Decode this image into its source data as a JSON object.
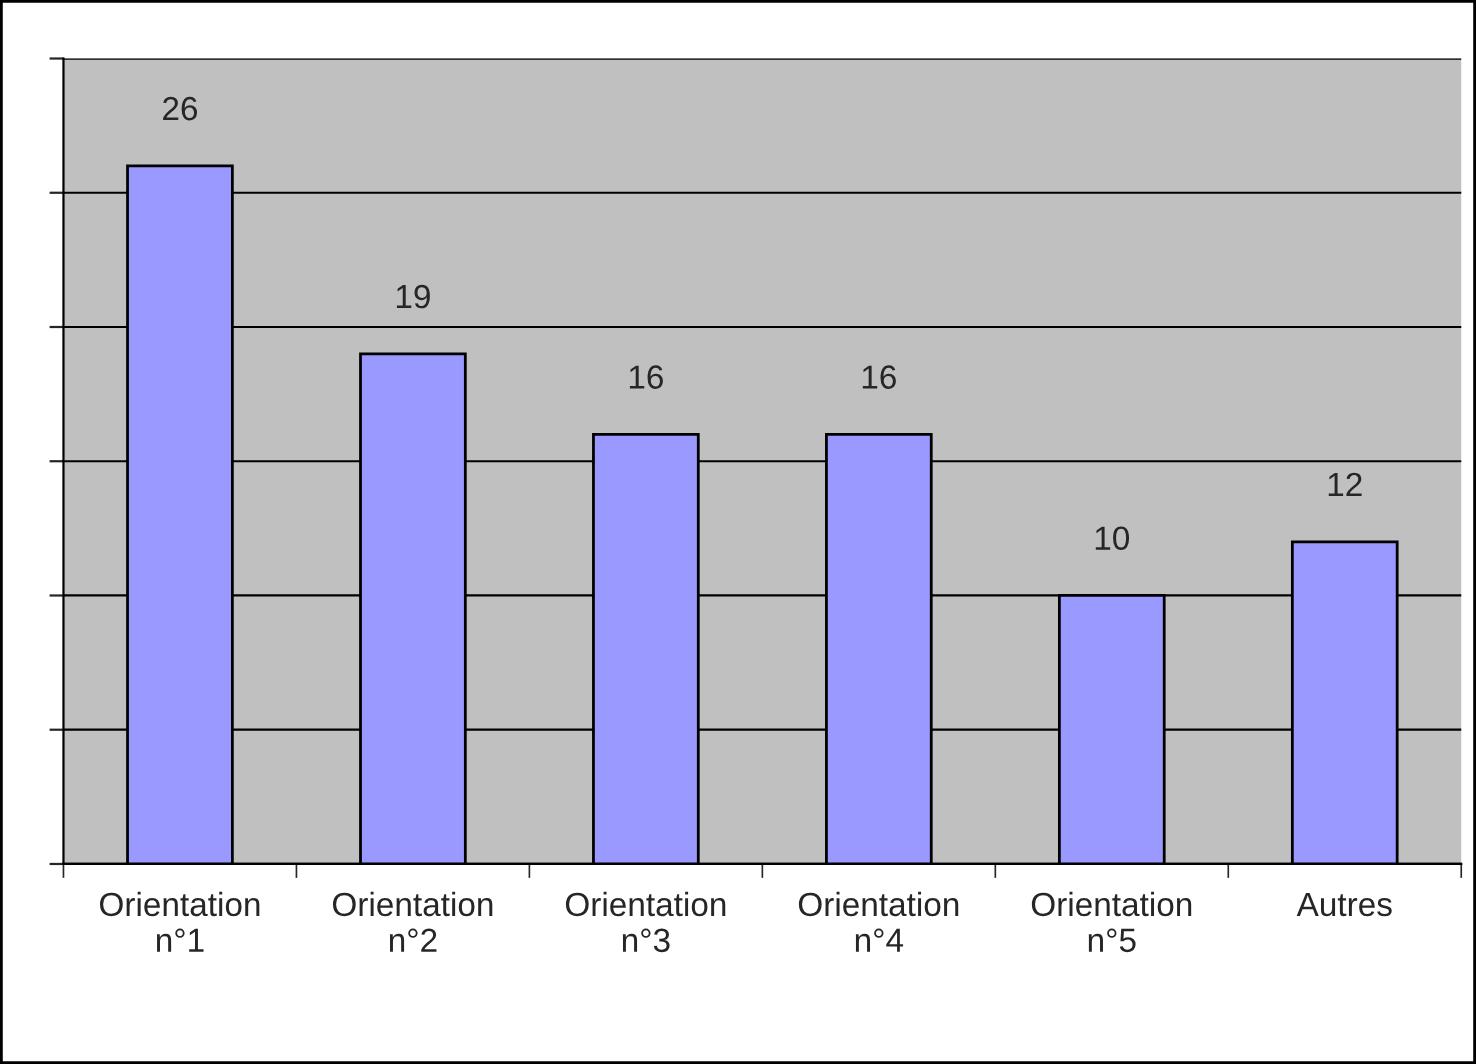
{
  "chart_data": {
    "type": "bar",
    "categories": [
      "Orientation\nn°1",
      "Orientation\nn°2",
      "Orientation\nn°3",
      "Orientation\nn°4",
      "Orientation\nn°5",
      "Autres"
    ],
    "values": [
      26,
      19,
      16,
      16,
      10,
      12
    ],
    "color": "#9999ff",
    "data_labels": true,
    "ylim": [
      0,
      30
    ],
    "yticks": [
      {
        "value": 0,
        "label": null
      },
      {
        "value": 5,
        "label": null
      },
      {
        "value": 10,
        "label": null
      },
      {
        "value": 15,
        "label": null
      },
      {
        "value": 20,
        "label": null
      },
      {
        "value": 25,
        "label": null
      },
      {
        "value": 30,
        "label": null
      }
    ],
    "grid": "y",
    "legend": false
  }
}
